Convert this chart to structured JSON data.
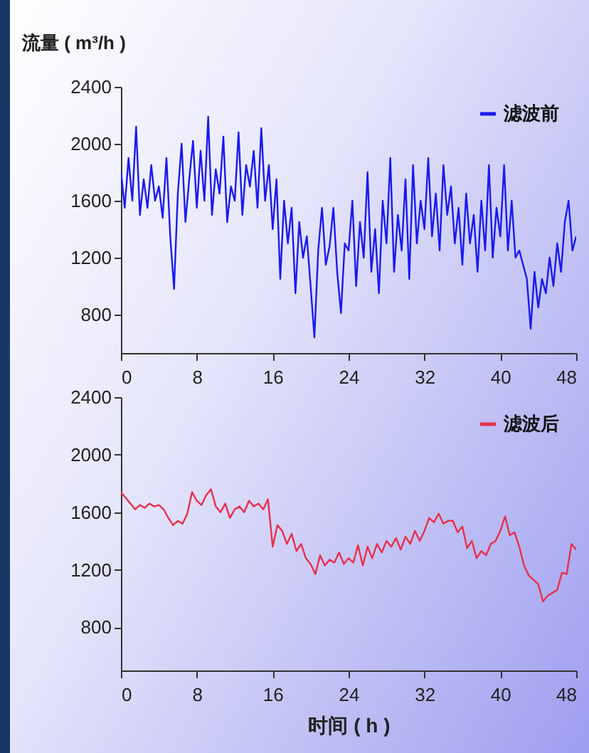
{
  "chart_data": [
    {
      "type": "line",
      "ylabel": "流量 ( m³/h )",
      "xlim": [
        0,
        48
      ],
      "xticks": [
        0,
        8,
        16,
        24,
        32,
        40,
        48
      ],
      "ylim": [
        530,
        2400
      ],
      "yticks": [
        800,
        1200,
        1600,
        2000,
        2400
      ],
      "grid": false,
      "legend": "top right",
      "series": [
        {
          "name": "滤波前",
          "color": "#1a1aee",
          "x": [
            0,
            0.4,
            0.8,
            1.2,
            1.6,
            2,
            2.4,
            2.8,
            3.2,
            3.6,
            4,
            4.4,
            4.8,
            5.2,
            5.6,
            6,
            6.4,
            6.8,
            7.2,
            7.6,
            8,
            8.4,
            8.8,
            9.2,
            9.6,
            10,
            10.4,
            10.8,
            11.2,
            11.6,
            12,
            12.4,
            12.8,
            13.2,
            13.6,
            14,
            14.4,
            14.8,
            15.2,
            15.6,
            16,
            16.4,
            16.8,
            17.2,
            17.6,
            18,
            18.4,
            18.8,
            19.2,
            19.6,
            20,
            20.4,
            20.8,
            21.2,
            21.6,
            22,
            22.4,
            22.8,
            23.2,
            23.6,
            24,
            24.4,
            24.8,
            25.2,
            25.6,
            26,
            26.4,
            26.8,
            27.2,
            27.6,
            28,
            28.4,
            28.8,
            29.2,
            29.6,
            30,
            30.4,
            30.8,
            31.2,
            31.6,
            32,
            32.4,
            32.8,
            33.2,
            33.6,
            34,
            34.4,
            34.8,
            35.2,
            35.6,
            36,
            36.4,
            36.8,
            37.2,
            37.6,
            38,
            38.4,
            38.8,
            39.2,
            39.6,
            40,
            40.4,
            40.8,
            41.2,
            41.6,
            42,
            42.4,
            42.8,
            43.2,
            43.6,
            44,
            44.4,
            44.8,
            45.2,
            45.6,
            46,
            46.4,
            46.8,
            47.2,
            47.6,
            48
          ],
          "values": [
            1810,
            1550,
            1900,
            1600,
            2120,
            1500,
            1750,
            1550,
            1850,
            1600,
            1700,
            1480,
            1900,
            1350,
            980,
            1650,
            2000,
            1450,
            1750,
            2020,
            1550,
            1950,
            1600,
            2190,
            1500,
            1820,
            1650,
            2050,
            1450,
            1700,
            1600,
            2080,
            1500,
            1850,
            1700,
            1950,
            1550,
            2110,
            1600,
            1850,
            1400,
            1750,
            1050,
            1600,
            1300,
            1550,
            950,
            1450,
            1200,
            1350,
            1000,
            640,
            1250,
            1550,
            1150,
            1280,
            1550,
            1100,
            810,
            1300,
            1250,
            1600,
            1000,
            1450,
            1200,
            1800,
            1100,
            1400,
            950,
            1600,
            1300,
            1900,
            1100,
            1500,
            1250,
            1750,
            1050,
            1850,
            1300,
            1600,
            1400,
            1900,
            1350,
            1650,
            1250,
            1850,
            1500,
            1700,
            1300,
            1550,
            1150,
            1650,
            1300,
            1500,
            1100,
            1600,
            1250,
            1850,
            1200,
            1550,
            1350,
            1850,
            1250,
            1600,
            1200,
            1250,
            1150,
            1050,
            700,
            1100,
            850,
            1050,
            950,
            1200,
            1000,
            1300,
            1100,
            1450,
            1600,
            1250,
            1350
          ]
        }
      ]
    },
    {
      "type": "line",
      "xlabel": "时间 ( h )",
      "xlim": [
        0,
        48
      ],
      "xticks": [
        0,
        8,
        16,
        24,
        32,
        40,
        48
      ],
      "ylim": [
        500,
        2400
      ],
      "yticks": [
        800,
        1200,
        1600,
        2000,
        2400
      ],
      "grid": false,
      "legend": "top right",
      "series": [
        {
          "name": "滤波后",
          "color": "#e8304a",
          "x": [
            0,
            0.5,
            1,
            1.5,
            2,
            2.5,
            3,
            3.5,
            4,
            4.5,
            5,
            5.5,
            6,
            6.5,
            7,
            7.5,
            8,
            8.5,
            9,
            9.5,
            10,
            10.5,
            11,
            11.5,
            12,
            12.5,
            13,
            13.5,
            14,
            14.5,
            15,
            15.5,
            16,
            16.5,
            17,
            17.5,
            18,
            18.5,
            19,
            19.5,
            20,
            20.5,
            21,
            21.5,
            22,
            22.5,
            23,
            23.5,
            24,
            24.5,
            25,
            25.5,
            26,
            26.5,
            27,
            27.5,
            28,
            28.5,
            29,
            29.5,
            30,
            30.5,
            31,
            31.5,
            32,
            32.5,
            33,
            33.5,
            34,
            34.5,
            35,
            35.5,
            36,
            36.5,
            37,
            37.5,
            38,
            38.5,
            39,
            39.5,
            40,
            40.5,
            41,
            41.5,
            42,
            42.5,
            43,
            43.5,
            44,
            44.5,
            45,
            45.5,
            46,
            46.5,
            47,
            47.5,
            48
          ],
          "values": [
            1740,
            1700,
            1660,
            1620,
            1650,
            1630,
            1660,
            1640,
            1650,
            1620,
            1560,
            1510,
            1540,
            1520,
            1590,
            1740,
            1680,
            1650,
            1720,
            1760,
            1640,
            1600,
            1660,
            1560,
            1620,
            1640,
            1600,
            1680,
            1640,
            1660,
            1620,
            1690,
            1360,
            1510,
            1470,
            1380,
            1450,
            1330,
            1380,
            1280,
            1240,
            1170,
            1300,
            1230,
            1270,
            1250,
            1320,
            1240,
            1280,
            1250,
            1370,
            1230,
            1360,
            1280,
            1380,
            1320,
            1400,
            1360,
            1420,
            1340,
            1430,
            1380,
            1470,
            1400,
            1470,
            1560,
            1530,
            1590,
            1520,
            1540,
            1540,
            1460,
            1500,
            1350,
            1400,
            1280,
            1330,
            1300,
            1380,
            1400,
            1470,
            1570,
            1440,
            1460,
            1360,
            1230,
            1160,
            1130,
            1100,
            980,
            1020,
            1040,
            1060,
            1180,
            1170,
            1380,
            1340
          ]
        }
      ]
    }
  ]
}
